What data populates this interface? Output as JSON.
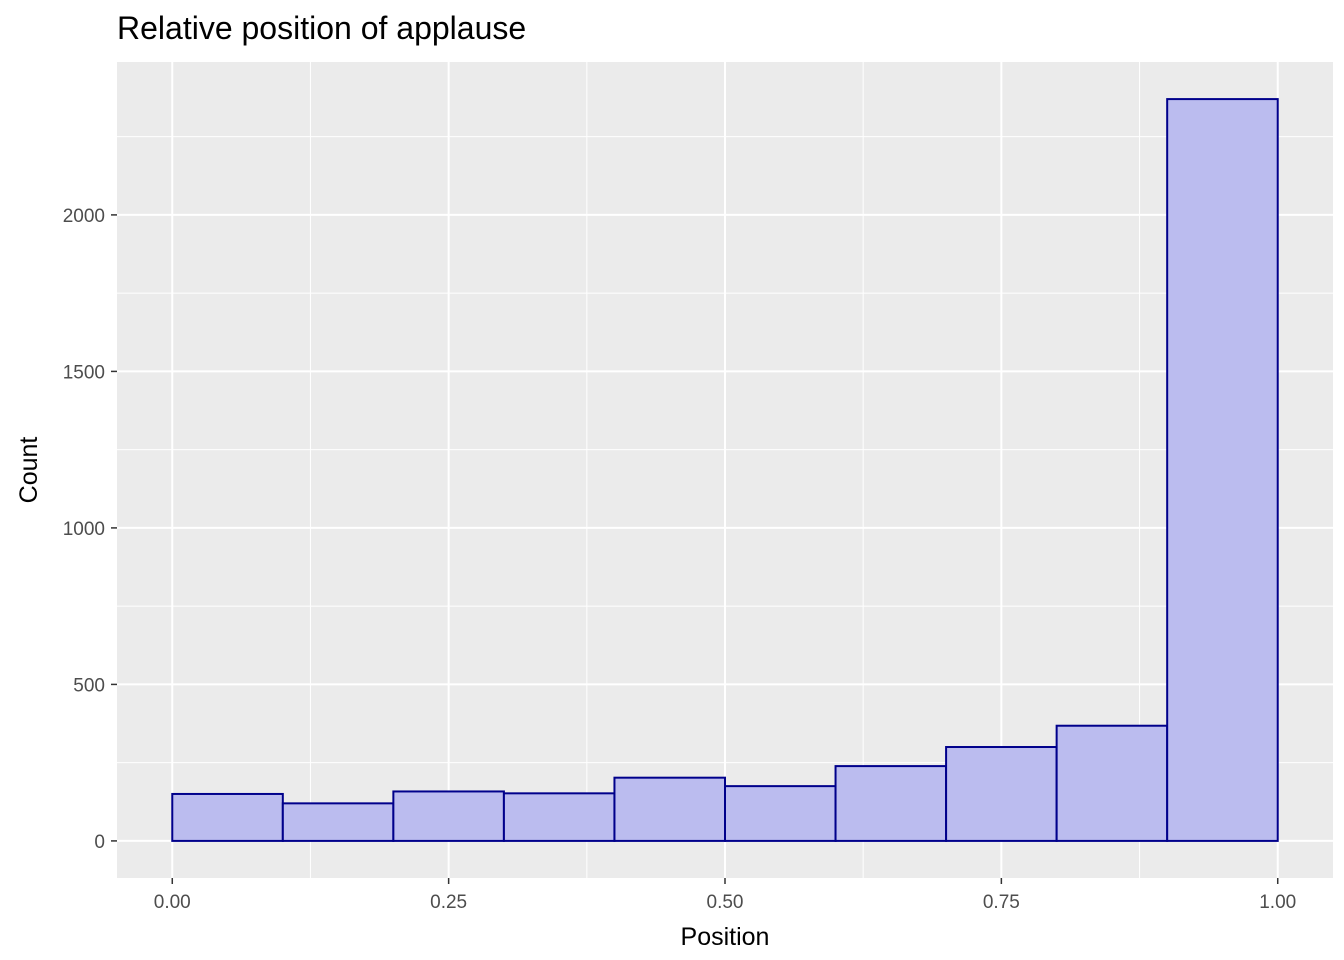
{
  "chart_data": {
    "type": "bar",
    "title": "Relative position of applause",
    "xlabel": "Position",
    "ylabel": "Count",
    "bins": [
      {
        "x0": 0.0,
        "x1": 0.1,
        "count": 150
      },
      {
        "x0": 0.1,
        "x1": 0.2,
        "count": 120
      },
      {
        "x0": 0.2,
        "x1": 0.3,
        "count": 158
      },
      {
        "x0": 0.3,
        "x1": 0.4,
        "count": 152
      },
      {
        "x0": 0.4,
        "x1": 0.5,
        "count": 202
      },
      {
        "x0": 0.5,
        "x1": 0.6,
        "count": 175
      },
      {
        "x0": 0.6,
        "x1": 0.7,
        "count": 239
      },
      {
        "x0": 0.7,
        "x1": 0.8,
        "count": 300
      },
      {
        "x0": 0.8,
        "x1": 0.9,
        "count": 368
      },
      {
        "x0": 0.9,
        "x1": 1.0,
        "count": 2370
      }
    ],
    "x_ticks": [
      0.0,
      0.25,
      0.5,
      0.75,
      1.0
    ],
    "x_tick_labels": [
      "0.00",
      "0.25",
      "0.50",
      "0.75",
      "1.00"
    ],
    "y_ticks": [
      0,
      500,
      1000,
      1500,
      2000
    ],
    "y_tick_labels": [
      "0",
      "500",
      "1000",
      "1500",
      "2000"
    ],
    "xlim": [
      -0.05,
      1.05
    ],
    "ylim": [
      -118.5,
      2488.5
    ],
    "grid": true,
    "legend": "none",
    "colors": {
      "panel_background": "#ebebeb",
      "grid": "#ffffff",
      "bar_fill": "#bbbcef",
      "bar_stroke": "#00008b",
      "tick_text": "#4d4d4d",
      "tick_mark": "#333333"
    }
  }
}
